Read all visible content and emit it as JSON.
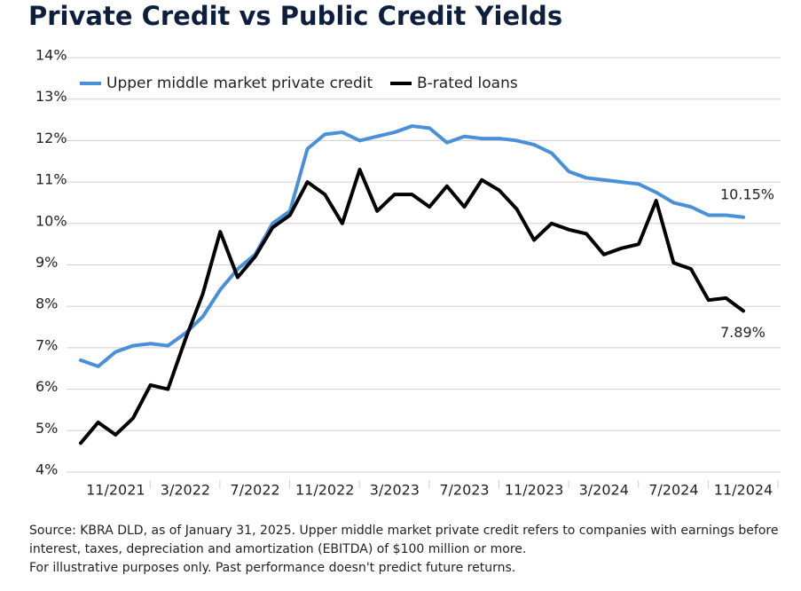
{
  "chart_data": {
    "type": "line",
    "title": "Private Credit vs Public Credit Yields",
    "categories": [
      null,
      null,
      "11/2021",
      null,
      null,
      null,
      "3/2022",
      null,
      null,
      null,
      "7/2022",
      null,
      null,
      null,
      "11/2022",
      null,
      null,
      null,
      "3/2023",
      null,
      null,
      null,
      "7/2023",
      null,
      null,
      null,
      "11/2023",
      null,
      null,
      null,
      "3/2024",
      null,
      null,
      null,
      "7/2024",
      null,
      null,
      null,
      "11/2024"
    ],
    "series": [
      {
        "name": "Upper middle market private credit",
        "color": "#4a90d9",
        "values": [
          6.7,
          6.55,
          6.9,
          7.05,
          7.1,
          7.05,
          7.35,
          7.75,
          8.4,
          8.9,
          9.25,
          10.0,
          10.3,
          11.8,
          12.15,
          12.2,
          12.0,
          12.1,
          12.2,
          12.35,
          12.3,
          11.95,
          12.1,
          12.05,
          12.05,
          12.0,
          11.9,
          11.7,
          11.25,
          11.1,
          11.05,
          11.0,
          10.95,
          10.75,
          10.5,
          10.4,
          10.2,
          10.2,
          10.15
        ],
        "value_labels": [
          null,
          null,
          null,
          null,
          null,
          null,
          null,
          null,
          null,
          null,
          null,
          null,
          null,
          null,
          null,
          null,
          null,
          null,
          null,
          null,
          null,
          null,
          null,
          null,
          null,
          null,
          null,
          null,
          null,
          null,
          null,
          null,
          null,
          null,
          null,
          null,
          null,
          null,
          "10.15%"
        ]
      },
      {
        "name": "B-rated loans",
        "color": "#000000",
        "values": [
          4.7,
          5.2,
          4.9,
          5.3,
          6.1,
          6.0,
          7.2,
          8.3,
          9.8,
          8.7,
          9.2,
          9.9,
          10.2,
          11.0,
          10.7,
          10.0,
          11.3,
          10.3,
          10.7,
          10.7,
          10.4,
          10.9,
          10.4,
          11.05,
          10.8,
          10.35,
          9.6,
          10.0,
          9.85,
          9.75,
          9.25,
          9.4,
          9.5,
          10.55,
          9.05,
          8.9,
          8.15,
          8.2,
          7.89
        ],
        "value_labels": [
          null,
          null,
          null,
          null,
          null,
          null,
          null,
          null,
          null,
          null,
          null,
          null,
          null,
          null,
          null,
          null,
          null,
          null,
          null,
          null,
          null,
          null,
          null,
          null,
          null,
          null,
          null,
          null,
          null,
          null,
          null,
          null,
          null,
          null,
          null,
          null,
          null,
          null,
          "7.89%"
        ]
      }
    ],
    "ylim": [
      4,
      14
    ],
    "yticks": [
      {
        "value": 4,
        "label": "4%"
      },
      {
        "value": 5,
        "label": "5%"
      },
      {
        "value": 6,
        "label": "6%"
      },
      {
        "value": 7,
        "label": "7%"
      },
      {
        "value": 8,
        "label": "8%"
      },
      {
        "value": 9,
        "label": "9%"
      },
      {
        "value": 10,
        "label": "10%"
      },
      {
        "value": 11,
        "label": "11%"
      },
      {
        "value": 12,
        "label": "12%"
      },
      {
        "value": 13,
        "label": "13%"
      },
      {
        "value": 14,
        "label": "14%"
      }
    ],
    "grid": true,
    "legend": "top-left",
    "footnotes": [
      "Source: KBRA DLD, as of January 31, 2025. Upper middle market private credit refers to companies with earnings before",
      "interest, taxes, depreciation and amortization (EBITDA) of $100 million or more.",
      "For illustrative purposes only. Past performance doesn't predict future returns."
    ]
  }
}
